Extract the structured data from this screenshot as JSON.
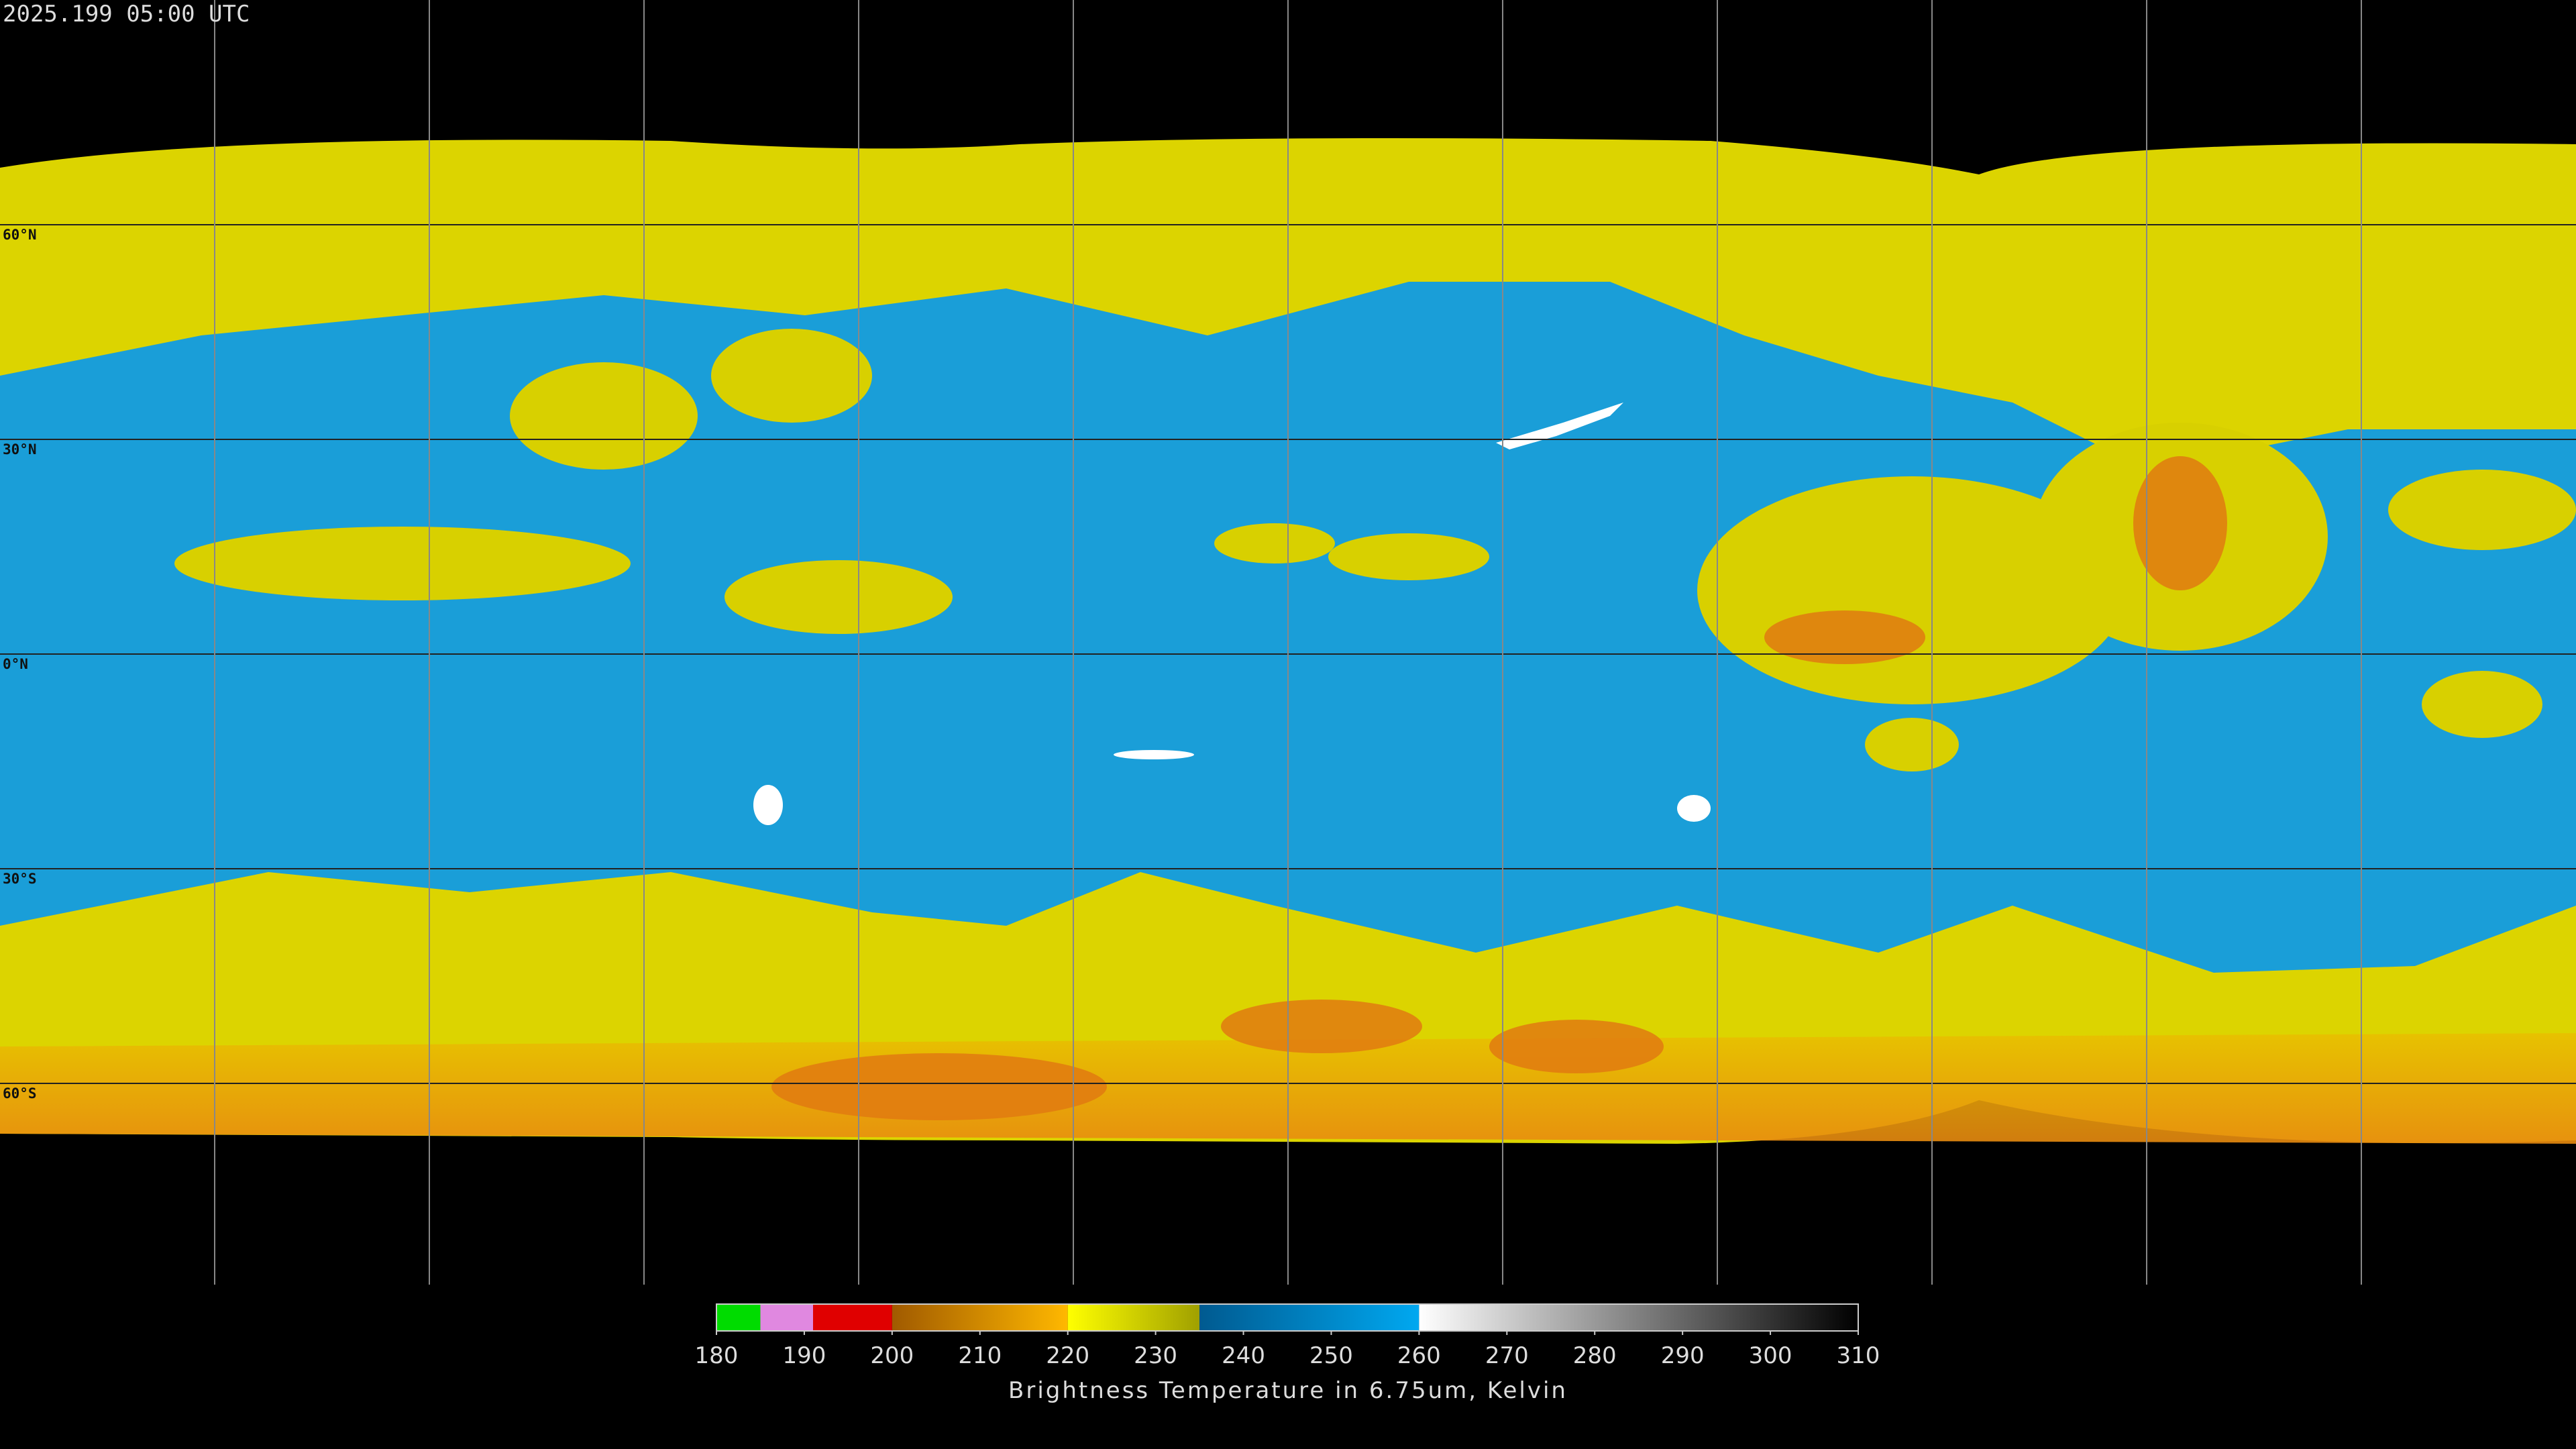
{
  "header": {
    "timestamp": "2025.199 05:00 UTC"
  },
  "map": {
    "lat_lines": [
      {
        "value": 60,
        "label": "60°N"
      },
      {
        "value": 30,
        "label": "30°N"
      },
      {
        "value": 0,
        "label": "0°N"
      },
      {
        "value": -30,
        "label": "30°S"
      },
      {
        "value": -60,
        "label": "60°S"
      }
    ],
    "lon_lines": [
      -150,
      -120,
      -90,
      -60,
      -30,
      0,
      30,
      60,
      90,
      120,
      150
    ]
  },
  "colorbar": {
    "label": "Brightness Temperature in 6.75um, Kelvin",
    "lim": [
      180,
      310
    ],
    "ticks": [
      180,
      190,
      200,
      210,
      220,
      230,
      240,
      250,
      260,
      270,
      280,
      290,
      300,
      310
    ],
    "segments": [
      {
        "from": 180,
        "to": 185,
        "colors": [
          "#00dc00",
          "#00dc00"
        ]
      },
      {
        "from": 185,
        "to": 191,
        "colors": [
          "#e088e0",
          "#e088e0"
        ]
      },
      {
        "from": 191,
        "to": 200,
        "colors": [
          "#e00000",
          "#e00000"
        ]
      },
      {
        "from": 200,
        "to": 220,
        "colors": [
          "#a05a00",
          "#ffb800"
        ]
      },
      {
        "from": 220,
        "to": 235,
        "colors": [
          "#ffff00",
          "#a0a000"
        ]
      },
      {
        "from": 235,
        "to": 260,
        "colors": [
          "#005a90",
          "#00a8f0"
        ]
      },
      {
        "from": 260,
        "to": 310,
        "colors": [
          "#ffffff",
          "#000000"
        ]
      }
    ]
  }
}
